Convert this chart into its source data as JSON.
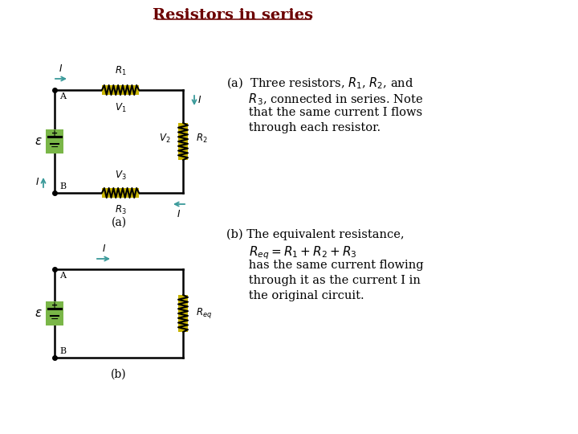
{
  "title": "Resistors in series",
  "title_color": "#6B0000",
  "bg_color": "#ffffff",
  "circuit_color": "#000000",
  "resistor_bg": "#c8b400",
  "battery_bg": "#7ab648",
  "arrow_color": "#3a9a9a",
  "text_color": "#000000",
  "label_a_caption": "(a)",
  "label_b_caption": "(b)"
}
